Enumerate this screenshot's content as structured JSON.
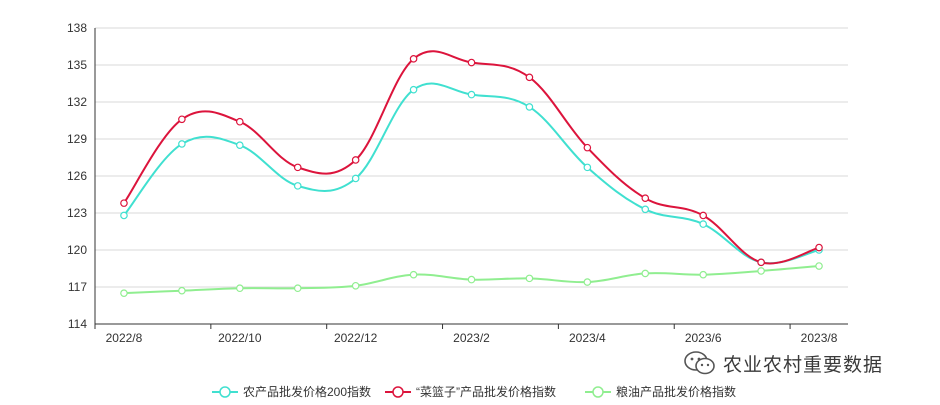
{
  "chart_data": {
    "type": "line",
    "categories": [
      "2022/8",
      "2022/9",
      "2022/10",
      "2022/11",
      "2022/12",
      "2023/1",
      "2023/2",
      "2023/3",
      "2023/4",
      "2023/5",
      "2023/6",
      "2023/7",
      "2023/8"
    ],
    "x_tick_labels": [
      "2022/8",
      "2022/10",
      "2022/12",
      "2023/2",
      "2023/4",
      "2023/6",
      "2023/8"
    ],
    "y_ticks": [
      114,
      117,
      120,
      123,
      126,
      129,
      132,
      135,
      138
    ],
    "ylim": [
      114,
      138
    ],
    "grid": "horizontal",
    "legend_position": "bottom",
    "series": [
      {
        "name": "农产品批发价格200指数",
        "color": "#40e0d0",
        "values": [
          122.8,
          128.6,
          128.5,
          125.2,
          125.8,
          133.0,
          132.6,
          131.6,
          126.7,
          123.3,
          122.1,
          119.0,
          120.0
        ]
      },
      {
        "name": "“菜篮子”产品批发价格指数",
        "color": "#dc143c",
        "values": [
          123.8,
          130.6,
          130.4,
          126.7,
          127.3,
          135.5,
          135.2,
          134.0,
          128.3,
          124.2,
          122.8,
          119.0,
          120.2
        ]
      },
      {
        "name": "粮油产品批发价格指数",
        "color": "#90ee90",
        "values": [
          116.5,
          116.7,
          116.9,
          116.9,
          117.1,
          118.0,
          117.6,
          117.7,
          117.4,
          118.1,
          118.0,
          118.3,
          118.7
        ]
      }
    ]
  },
  "watermark": {
    "text": "农业农村重要数据",
    "icon": "wechat-icon"
  }
}
